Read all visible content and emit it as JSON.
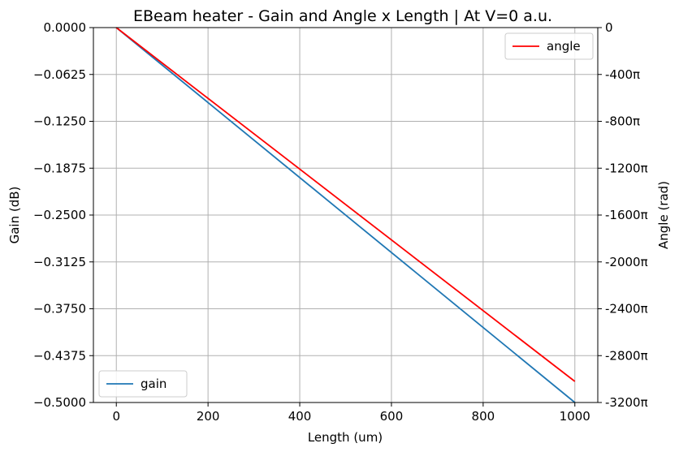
{
  "chart_data": {
    "type": "line",
    "title": "EBeam heater  -  Gain and Angle x Length | At V=0 a.u.",
    "xlabel": "Length (um)",
    "ylabel_left": "Gain (dB)",
    "ylabel_right": "Angle (rad)",
    "xlim": [
      -50,
      1050
    ],
    "ylim_left": [
      -0.5,
      0
    ],
    "ylim_right": [
      -3200,
      0
    ],
    "right_unit_suffix": "π",
    "grid": true,
    "x_ticks": [
      0,
      200,
      400,
      600,
      800,
      1000
    ],
    "x_tick_labels": [
      "0",
      "200",
      "400",
      "600",
      "800",
      "1000"
    ],
    "y_left_ticks": [
      0,
      -0.0625,
      -0.125,
      -0.1875,
      -0.25,
      -0.3125,
      -0.375,
      -0.4375,
      -0.5
    ],
    "y_left_tick_labels": [
      "0.0000",
      "−0.0625",
      "−0.1250",
      "−0.1875",
      "−0.2500",
      "−0.3125",
      "−0.3750",
      "−0.4375",
      "−0.5000"
    ],
    "y_right_ticks": [
      0,
      -400,
      -800,
      -1200,
      -1600,
      -2000,
      -2400,
      -2800,
      -3200
    ],
    "y_right_tick_labels": [
      "0",
      "-400π",
      "-800π",
      "-1200π",
      "-1600π",
      "-2000π",
      "-2400π",
      "-2800π",
      "-3200π"
    ],
    "series": [
      {
        "name": "gain",
        "axis": "left",
        "color": "#1f77b4",
        "x": [
          0,
          1000
        ],
        "y": [
          0,
          -0.5
        ]
      },
      {
        "name": "angle",
        "axis": "right",
        "color": "#ff0000",
        "x": [
          0,
          1000
        ],
        "y": [
          0,
          -3020
        ]
      }
    ],
    "legends": [
      {
        "series": "angle",
        "placement": "top-right"
      },
      {
        "series": "gain",
        "placement": "bottom-left"
      }
    ]
  }
}
